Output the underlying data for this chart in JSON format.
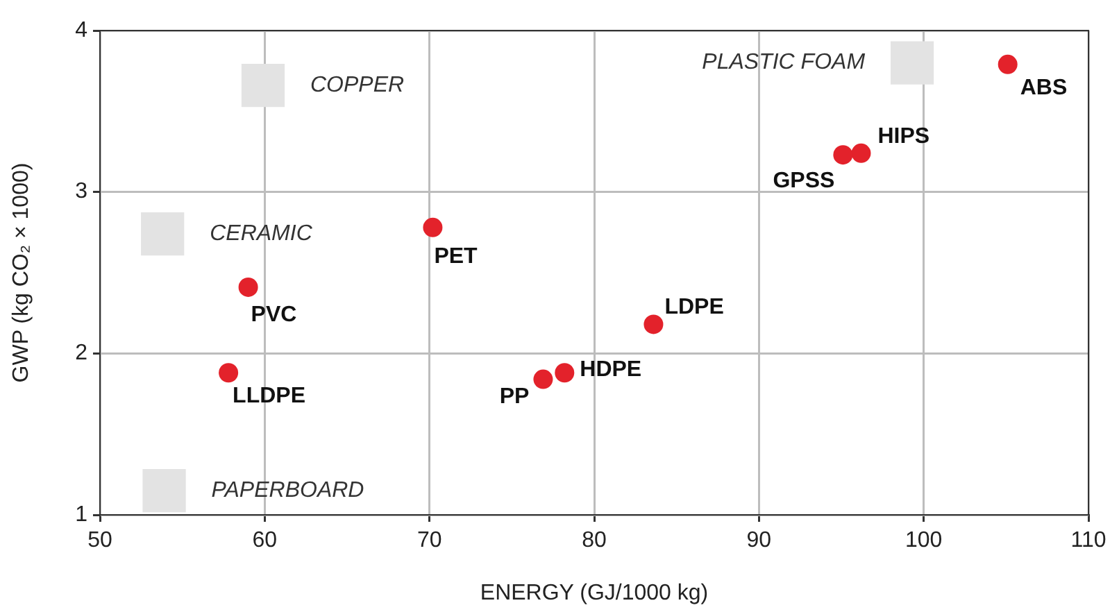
{
  "chart_data": {
    "type": "scatter",
    "xlabel": "ENERGY (GJ/1000 kg)",
    "ylabel": "GWP (kg CO₂ × 1000)",
    "xlim": [
      50,
      110
    ],
    "xticks": [
      50,
      60,
      70,
      80,
      90,
      100,
      110
    ],
    "ylim": [
      1,
      4
    ],
    "yticks": [
      1,
      2,
      3,
      4
    ],
    "grid": true,
    "legend": false,
    "marker": "circle",
    "series": [
      {
        "type": "scatter",
        "marker": "square",
        "color": "#e3e3e3",
        "x": [
          59.9,
          53.8,
          99.3,
          53.9
        ],
        "values": [
          3.66,
          2.74,
          3.8,
          1.15
        ]
      },
      {
        "color": "#e3222b",
        "x": [
          105.1,
          96.2,
          95.1,
          70.2,
          59.0,
          57.8,
          83.6,
          78.2,
          76.9
        ],
        "values": [
          3.79,
          3.24,
          3.23,
          2.78,
          2.41,
          1.88,
          2.18,
          1.88,
          1.84
        ]
      }
    ],
    "annotations": [
      {
        "text": "ABS",
        "x": 105.1,
        "y": 3.79
      },
      {
        "text": "HIPS",
        "x": 96.2,
        "y": 3.24
      },
      {
        "text": "GPSS",
        "x": 95.1,
        "y": 3.23
      },
      {
        "text": "PET",
        "x": 70.2,
        "y": 2.78
      },
      {
        "text": "PVC",
        "x": 59.0,
        "y": 2.41
      },
      {
        "text": "LLDPE",
        "x": 57.8,
        "y": 1.88
      },
      {
        "text": "LDPE",
        "x": 83.6,
        "y": 2.18
      },
      {
        "text": "HDPE",
        "x": 78.2,
        "y": 1.88
      },
      {
        "text": "PP",
        "x": 76.9,
        "y": 1.84
      },
      {
        "text": "COPPER",
        "x": 59.9,
        "y": 3.66
      },
      {
        "text": "CERAMIC",
        "x": 53.8,
        "y": 2.74
      },
      {
        "text": "PLASTIC FOAM",
        "x": 99.3,
        "y": 3.8
      },
      {
        "text": "PAPERBOARD",
        "x": 53.9,
        "y": 1.15
      }
    ]
  }
}
